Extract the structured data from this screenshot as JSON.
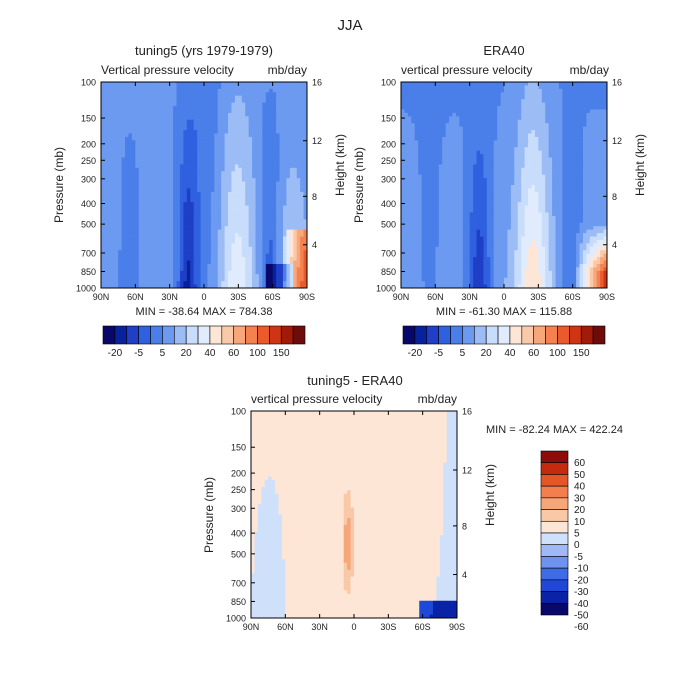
{
  "figure": {
    "season_title": "JJA"
  },
  "palettes": {
    "main": [
      "#08086b",
      "#08219c",
      "#1f3fc7",
      "#2f60df",
      "#4a7ee8",
      "#6c9af0",
      "#9cbcf6",
      "#c8dcfb",
      "#e0ecfd",
      "#fde6d6",
      "#fac9a9",
      "#f8a77b",
      "#f4814f",
      "#ea5a2d",
      "#cf3415",
      "#a31a09",
      "#6e0c0c"
    ],
    "diff": [
      "#08086b",
      "#0a22a5",
      "#1f48d6",
      "#3f6be6",
      "#6f92ee",
      "#a0b9f4",
      "#cfe0fb",
      "#fde6d6",
      "#f9c8a6",
      "#f6a679",
      "#f27f4d",
      "#e45528",
      "#c5290e",
      "#8c0c0c"
    ]
  },
  "chart_data": [
    {
      "type": "heatmap",
      "title": "tuning5 (yrs 1979-1979)",
      "subtitle_left": "Vertical pressure velocity",
      "subtitle_right": "mb/day",
      "ylabel": "Pressure (mb)",
      "y2label": "Height (km)",
      "x_ticks": [
        "90N",
        "60N",
        "30N",
        "0",
        "30S",
        "60S",
        "90S"
      ],
      "y_ticks": [
        "100",
        "150",
        "200",
        "250",
        "300",
        "400",
        "500",
        "700",
        "850",
        "1000"
      ],
      "y2_ticks": [
        "16",
        "12",
        "8",
        "4"
      ],
      "stats_text": "MIN = -38.64   MAX = 784.38",
      "colorbar_labels": [
        "-20",
        "-5",
        "5",
        "20",
        "40",
        "60",
        "100",
        "150"
      ]
    },
    {
      "type": "heatmap",
      "title": "ERA40",
      "subtitle_left": "vertical pressure velocity",
      "subtitle_right": "mb/day",
      "ylabel": "Pressure (mb)",
      "y2label": "Height (km)",
      "x_ticks": [
        "90N",
        "60N",
        "30N",
        "0",
        "30S",
        "60S",
        "90S"
      ],
      "y_ticks": [
        "100",
        "150",
        "200",
        "250",
        "300",
        "400",
        "500",
        "700",
        "850",
        "1000"
      ],
      "y2_ticks": [
        "16",
        "12",
        "8",
        "4"
      ],
      "stats_text": "MIN = -61.30   MAX = 115.88",
      "colorbar_labels": [
        "-20",
        "-5",
        "5",
        "20",
        "40",
        "60",
        "100",
        "150"
      ]
    },
    {
      "type": "heatmap",
      "title": "tuning5 - ERA40",
      "subtitle_left": "vertical pressure velocity",
      "subtitle_right": "mb/day",
      "ylabel": "Pressure (mb)",
      "y2label": "Height (km)",
      "x_ticks": [
        "90N",
        "60N",
        "30N",
        "0",
        "30S",
        "60S",
        "90S"
      ],
      "y_ticks": [
        "100",
        "150",
        "200",
        "250",
        "300",
        "400",
        "500",
        "700",
        "850",
        "1000"
      ],
      "y2_ticks": [
        "16",
        "12",
        "8",
        "4"
      ],
      "stats_text": "MIN = -82.24   MAX = 422.24",
      "colorbar_labels": [
        "60",
        "50",
        "40",
        "30",
        "20",
        "10",
        "5",
        "0",
        "-5",
        "-10",
        "-20",
        "-30",
        "-40",
        "-50",
        "-60"
      ]
    }
  ]
}
